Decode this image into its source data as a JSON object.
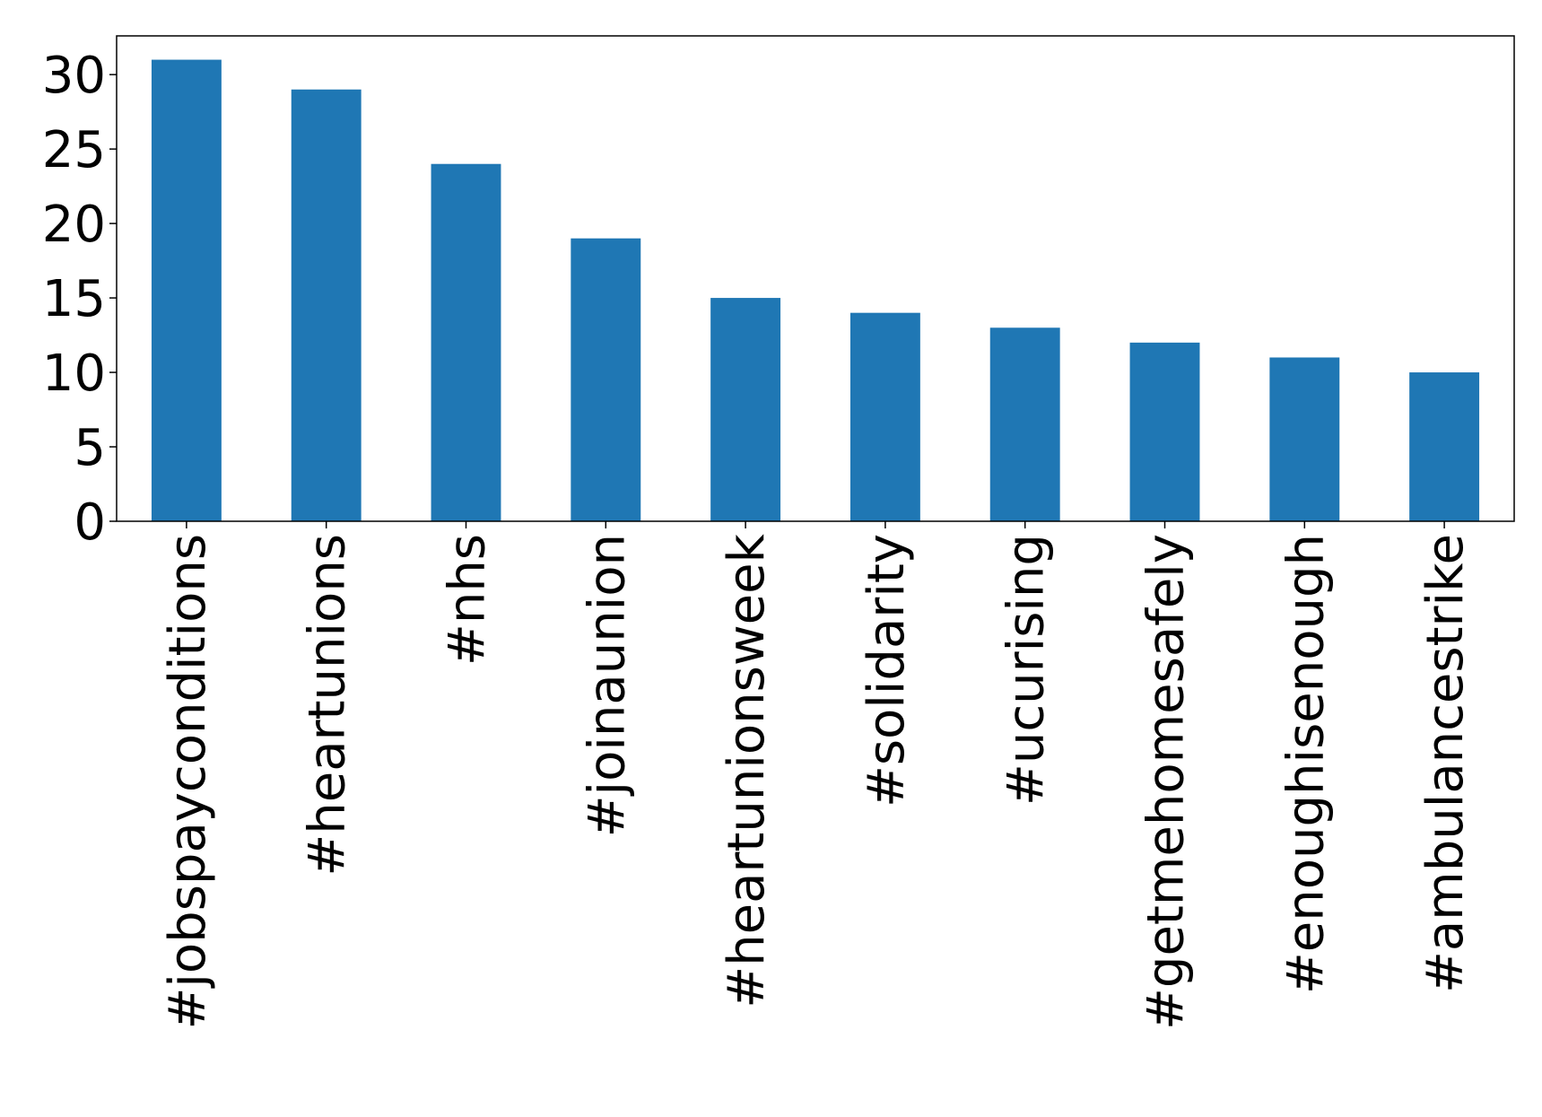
{
  "chart_data": {
    "type": "bar",
    "categories": [
      "#jobspayconditions",
      "#heartunions",
      "#nhs",
      "#joinaunion",
      "#heartunionsweek",
      "#solidarity",
      "#ucurising",
      "#getmehomesafely",
      "#enoughisenough",
      "#ambulancestrike"
    ],
    "values": [
      31,
      29,
      24,
      19,
      15,
      14,
      13,
      12,
      11,
      10
    ],
    "color": "#1f77b4",
    "ylim": [
      0,
      32.6
    ],
    "yticks": [
      0,
      5,
      10,
      15,
      20,
      25,
      30
    ],
    "grid": false
  }
}
